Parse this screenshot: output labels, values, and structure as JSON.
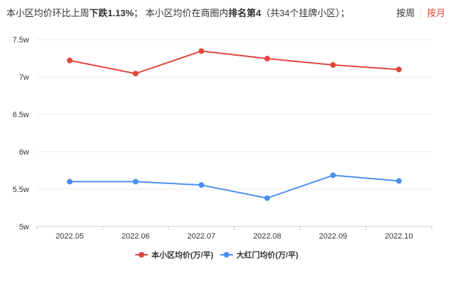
{
  "summary": {
    "p1": "本小区均价环比上周",
    "p2": "下跌1.13%",
    "p3": "；  本小区均价在商圈内",
    "p4": "排名第4",
    "p5": "（共34个挂牌小区）；"
  },
  "toggle": {
    "week": "按周",
    "month": "按月",
    "selected": "month"
  },
  "colors": {
    "series1": "#e0463c",
    "series2": "#4b8ff0",
    "grid": "#e9e9e9",
    "axis": "#cccccc",
    "text": "#333333",
    "active": "#e0463c"
  },
  "chart_data": {
    "type": "line",
    "categories": [
      "2022.05",
      "2022.06",
      "2022.07",
      "2022.08",
      "2022.09",
      "2022.10"
    ],
    "yticks": [
      "5w",
      "5.5w",
      "6w",
      "6.5w",
      "7w",
      "7.5w"
    ],
    "ylim": [
      50000,
      75000
    ],
    "grid": true,
    "legend": "bottom-center",
    "series": [
      {
        "name": "本小区均价(万/平)",
        "values": [
          72200,
          70450,
          73450,
          72450,
          71600,
          71000
        ]
      },
      {
        "name": "大红门均价(万/平)",
        "values": [
          56000,
          56000,
          55550,
          53800,
          56850,
          56100
        ]
      }
    ]
  }
}
